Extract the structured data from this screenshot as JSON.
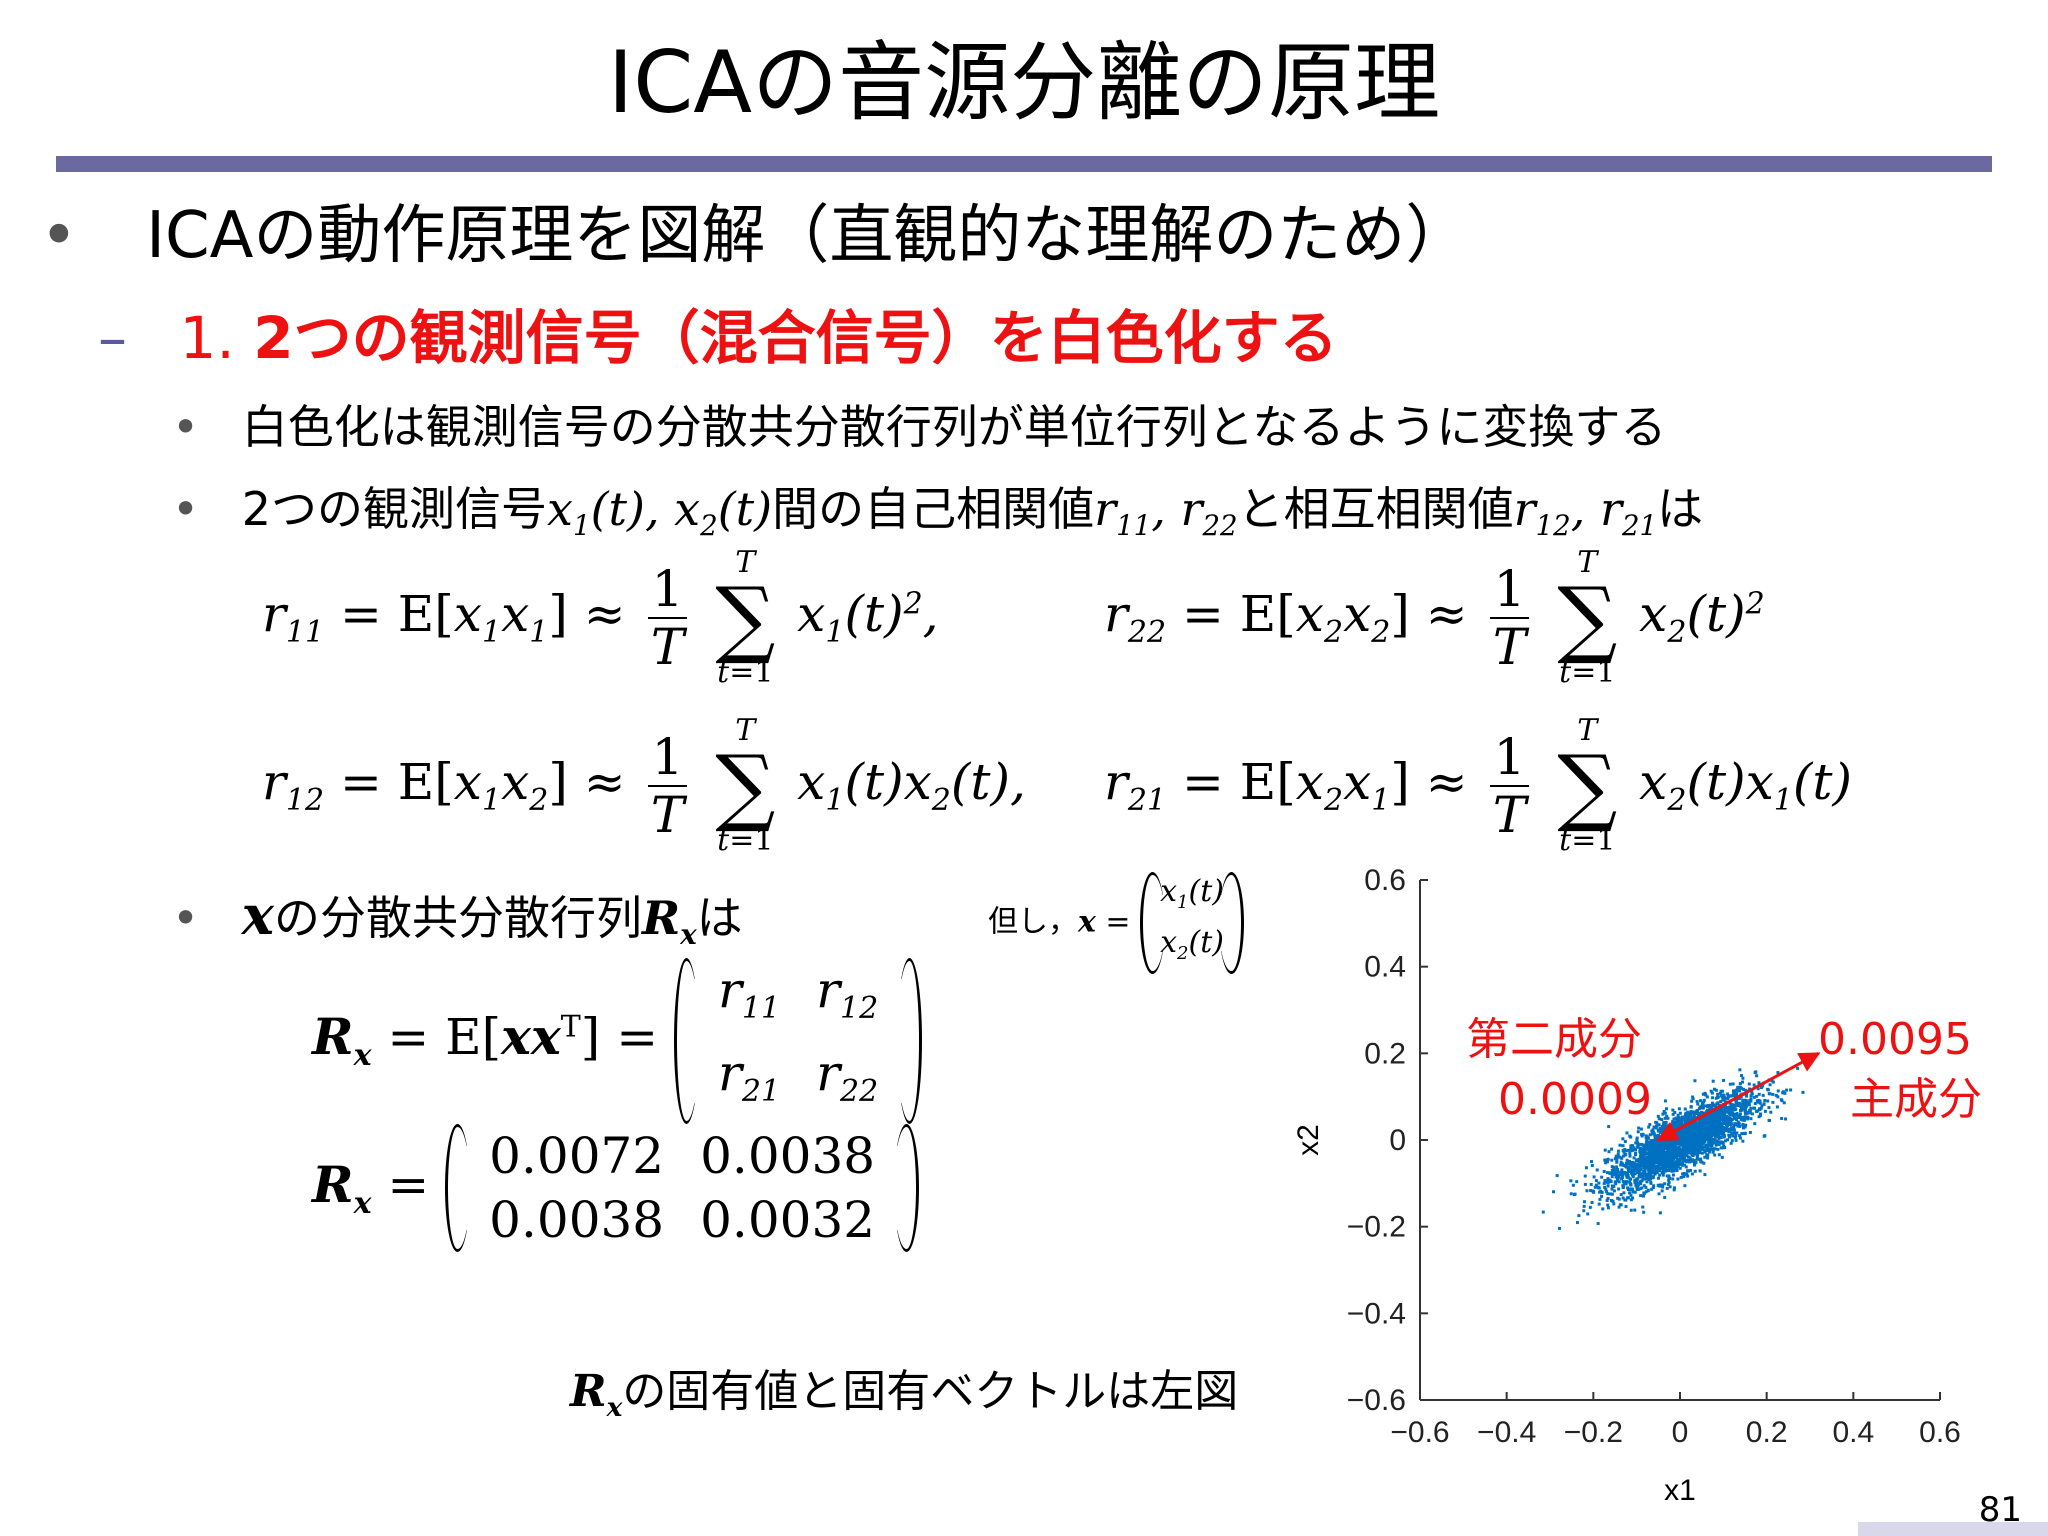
{
  "slide": {
    "title": "ICAの音源分離の原理",
    "page_number": "81"
  },
  "bullets": {
    "b1": "ICAの動作原理を図解（直観的な理解のため）",
    "b2_num": "1. ",
    "b2_text": "2つの観測信号（混合信号）を白色化する",
    "b3": "白色化は観測信号の分散共分散行列が単位行列となるように変換する",
    "b4_a": "2つの観測信号",
    "b4_b": "間の自己相関値",
    "b4_c": "と相互相関値",
    "b4_d": "は",
    "b5_a": "の分散共分散行列",
    "b5_b": "は",
    "note_prefix": "但し，",
    "caption_tail": "の固有値と固有ベクトルは左図"
  },
  "matrix_values": {
    "a11": "0.0072",
    "a12": "0.0038",
    "a21": "0.0038",
    "a22": "0.0032"
  },
  "chart_labels": {
    "second_component_label": "第二成分",
    "second_component_value": "0.0009",
    "principal_component_value": "0.0095",
    "principal_component_label": "主成分"
  },
  "colors": {
    "accent": "#ee1111",
    "title_rule": "#6a6aa0",
    "scatter": "#0070c0"
  },
  "chart_data": {
    "type": "scatter",
    "xlabel": "x1",
    "ylabel": "x2",
    "xlim": [
      -0.6,
      0.6
    ],
    "ylim": [
      -0.6,
      0.6
    ],
    "xticks": [
      "−0.6",
      "−0.4",
      "−0.2",
      "0",
      "0.2",
      "0.4",
      "0.6"
    ],
    "yticks": [
      "0.6",
      "0.4",
      "0.2",
      "0",
      "−0.2",
      "−0.4",
      "−0.6"
    ],
    "covariance": [
      [
        0.0072,
        0.0038
      ],
      [
        0.0038,
        0.0032
      ]
    ],
    "principal_vector": {
      "from": [
        -0.05,
        0.0
      ],
      "to": [
        0.32,
        0.2
      ]
    },
    "second_vector": {
      "from": [
        0.32,
        0.2
      ],
      "to": [
        -0.05,
        0.0
      ]
    }
  }
}
